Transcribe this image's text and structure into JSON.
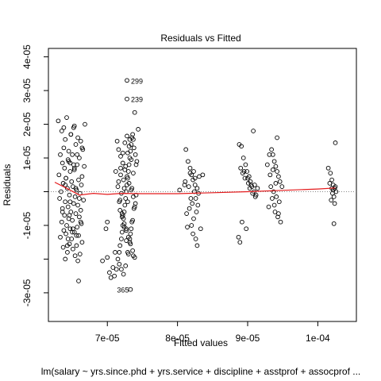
{
  "chart_data": {
    "type": "scatter",
    "title": "Residuals vs Fitted",
    "xlabel": "Fitted values",
    "ylabel": "Residuals",
    "subtitle": "lm(salary ~ yrs.since.phd + yrs.service + discipline + asstprof + assocprof ...",
    "xlim": [
      6.16e-05,
      0.0001055
    ],
    "ylim": [
      -3.85e-05,
      4.25e-05
    ],
    "x_ticks": [
      {
        "value": 7e-05,
        "label": "7e-05"
      },
      {
        "value": 8e-05,
        "label": "8e-05"
      },
      {
        "value": 9e-05,
        "label": "9e-05"
      },
      {
        "value": 0.0001,
        "label": "1e-04"
      }
    ],
    "y_ticks": [
      {
        "value": -3e-05,
        "label": "-3e-05"
      },
      {
        "value": -2e-05,
        "label": ""
      },
      {
        "value": -1e-05,
        "label": "-1e-05"
      },
      {
        "value": 0.0,
        "label": ""
      },
      {
        "value": 1e-05,
        "label": "1e-05"
      },
      {
        "value": 2e-05,
        "label": "2e-05"
      },
      {
        "value": 3e-05,
        "label": "3e-05"
      },
      {
        "value": 4e-05,
        "label": "4e-05"
      }
    ],
    "grid": false,
    "reference_line": {
      "y": 0,
      "style": "dotted",
      "color": "#888888"
    },
    "smooth_color": "#e41a1c",
    "point_color": "#000000",
    "smooth": {
      "x": [
        6.25e-05,
        6.42e-05,
        6.6e-05,
        6.8e-05,
        7e-05,
        7.2e-05,
        7.5e-05,
        8e-05,
        8.5e-05,
        9e-05,
        9.5e-05,
        0.0001,
        0.0001025
      ],
      "y": [
        2.8e-06,
        1e-06,
        -1e-06,
        -5e-07,
        -8e-07,
        -5e-07,
        -6e-07,
        -6e-07,
        -3e-07,
        0.0,
        4e-07,
        8e-07,
        1.1e-06
      ]
    },
    "annotations": [
      {
        "label": "299",
        "x": 7.28e-05,
        "y": 3.3e-05
      },
      {
        "label": "239",
        "x": 7.28e-05,
        "y": 2.75e-05
      },
      {
        "label": "365",
        "x": 7.33e-05,
        "y": -2.9e-05
      }
    ],
    "series": [
      {
        "x": [
          6.3e-05,
          6.42e-05,
          6.52e-05,
          6.68e-05,
          6.35e-05,
          6.48e-05,
          6.58e-05,
          6.4e-05,
          6.62e-05,
          6.55e-05,
          6.38e-05,
          6.65e-05,
          6.45e-05,
          6.33e-05,
          6.5e-05,
          6.6e-05,
          6.44e-05,
          6.36e-05,
          6.57e-05,
          6.67e-05,
          6.39e-05,
          6.53e-05,
          6.47e-05,
          6.31e-05,
          6.64e-05,
          6.41e-05,
          6.59e-05,
          6.49e-05,
          6.37e-05,
          6.63e-05,
          6.51e-05,
          6.43e-05,
          6.56e-05,
          6.34e-05,
          6.61e-05,
          6.46e-05,
          6.54e-05,
          6.32e-05,
          6.66e-05,
          6.4e-05,
          6.52e-05,
          6.58e-05,
          6.44e-05,
          6.36e-05,
          6.62e-05,
          6.48e-05,
          6.55e-05,
          6.39e-05,
          6.6e-05,
          6.45e-05,
          6.5e-05,
          6.35e-05,
          6.63e-05,
          6.42e-05,
          6.57e-05,
          6.47e-05,
          6.38e-05,
          6.53e-05,
          6.41e-05,
          6.59e-05,
          6.33e-05,
          6.49e-05,
          6.64e-05,
          6.46e-05,
          6.56e-05,
          6.37e-05,
          6.51e-05,
          6.43e-05,
          6.61e-05,
          6.54e-05,
          6.4e-05,
          6.58e-05,
          6.44e-05,
          6.5e-05,
          6.62e-05,
          6.36e-05,
          6.47e-05,
          6.55e-05,
          6.41e-05,
          6.52e-05,
          6.64e-05,
          6.48e-05,
          6.38e-05,
          6.57e-05,
          6.45e-05,
          6.53e-05,
          6.4e-05,
          6.6e-05,
          6.46e-05,
          6.51e-05,
          6.43e-05,
          6.56e-05,
          6.59e-05,
          6.47e-05,
          6.53e-05
        ],
        "y": [
          2.1e-05,
          2.2e-05,
          1.9e-05,
          2e-05,
          1.8e-05,
          1.7e-05,
          1.6e-05,
          1.55e-05,
          1.5e-05,
          1.4e-05,
          1.3e-05,
          1.25e-05,
          1.2e-05,
          1.1e-05,
          1.1e-05,
          1e-05,
          9.5e-06,
          8.5e-06,
          8e-06,
          7.5e-06,
          7e-06,
          6.5e-06,
          6e-06,
          5e-06,
          4.5e-06,
          4e-06,
          3.5e-06,
          3e-06,
          2.5e-06,
          2e-06,
          1.5e-06,
          1e-06,
          5e-07,
          0.0,
          -5e-07,
          -1e-06,
          -1.5e-06,
          -2e-06,
          -2.5e-06,
          -3e-06,
          -3.5e-06,
          -4e-06,
          -4.5e-06,
          -5e-06,
          -5.5e-06,
          -6e-06,
          -6.5e-06,
          -7e-06,
          -7.5e-06,
          -8e-06,
          -8.5e-06,
          -9e-06,
          -9.5e-06,
          -1e-05,
          -1.05e-05,
          -1.1e-05,
          -1.15e-05,
          -1.2e-05,
          -1.25e-05,
          -1.3e-05,
          -1.35e-05,
          -1.4e-05,
          -1.5e-05,
          -1.55e-05,
          -1.6e-05,
          -1.65e-05,
          -1.7e-05,
          -1.8e-05,
          -1.85e-05,
          -1.9e-05,
          -2e-05,
          -2.05e-05,
          -1.4e-05,
          -1.2e-05,
          -9e-06,
          -6e-06,
          -3e-06,
          1e-06,
          4e-06,
          8e-06,
          1.3e-05,
          1.7e-05,
          1.9e-05,
          1.1e-05,
          9e-06,
          7e-06,
          2e-06,
          -2e-06,
          -7e-06,
          -1.1e-05,
          -1.6e-05,
          -1.3e-05,
          -2.65e-05,
          8.5e-06,
          1.95e-05
        ]
      },
      {
        "x": [
          6.93e-05,
          7e-05,
          7.03e-05,
          7.1e-05,
          7.13e-05,
          7.15e-05,
          7.17e-05,
          7.18e-05,
          7.2e-05,
          7.21e-05,
          7.22e-05,
          7.23e-05,
          7.24e-05,
          7.25e-05,
          7.26e-05,
          7.27e-05,
          7.28e-05,
          7.29e-05,
          7.3e-05,
          7.31e-05,
          7.32e-05,
          7.33e-05,
          7.34e-05,
          7.35e-05,
          7.36e-05,
          7.37e-05,
          7.38e-05,
          7.4e-05,
          7.42e-05,
          7.44e-05,
          7.14e-05,
          7.16e-05,
          7.19e-05,
          7.22e-05,
          7.25e-05,
          7.28e-05,
          7.31e-05,
          7.34e-05,
          7.37e-05,
          7.4e-05,
          7.18e-05,
          7.21e-05,
          7.24e-05,
          7.27e-05,
          7.3e-05,
          7.33e-05,
          7.36e-05,
          7.39e-05,
          7.17e-05,
          7.2e-05,
          7.23e-05,
          7.26e-05,
          7.29e-05,
          7.32e-05,
          7.35e-05,
          7.38e-05,
          7.41e-05,
          7.16e-05,
          7.19e-05,
          7.22e-05,
          7.25e-05,
          7.28e-05,
          7.31e-05,
          7.34e-05,
          7.37e-05,
          7.15e-05,
          7.18e-05,
          7.21e-05,
          7.24e-05,
          7.27e-05,
          7.3e-05,
          7.33e-05,
          7.36e-05,
          7.39e-05,
          7.2e-05,
          7.23e-05,
          7.26e-05,
          7.29e-05,
          7.32e-05,
          7.35e-05,
          7.17e-05,
          7.22e-05,
          7.27e-05,
          7.32e-05,
          7.37e-05,
          7.19e-05,
          7.24e-05,
          7.29e-05,
          7.34e-05,
          7.39e-05,
          7.05e-05,
          7.08e-05,
          7.11e-05,
          7e-05,
          6.98e-05,
          7.12e-05,
          7.41e-05,
          7.28e-05,
          7.28e-05,
          7.33e-05
        ],
        "y": [
          -2.05e-05,
          -1.95e-05,
          -2.4e-05,
          -2.5e-05,
          -2.3e-05,
          -2e-05,
          -1.8e-05,
          -1.6e-05,
          -1.4e-05,
          -1.2e-05,
          -1e-05,
          -8e-06,
          -6e-06,
          -4e-06,
          -2e-06,
          0.0,
          2e-06,
          4e-06,
          6e-06,
          8e-06,
          1e-05,
          1.2e-05,
          1.4e-05,
          1.6e-05,
          1.7e-05,
          1.55e-05,
          1.3e-05,
          1.1e-05,
          9e-06,
          1.85e-05,
          1.5e-05,
          1.25e-05,
          1.05e-05,
          8.5e-06,
          6.5e-06,
          4.5e-06,
          2.5e-06,
          5e-07,
          -1.5e-06,
          -3.5e-06,
          -5.5e-06,
          -7.5e-06,
          -9.5e-06,
          -1.15e-05,
          -1.35e-05,
          -1.55e-05,
          -1.75e-05,
          -1.95e-05,
          -2.15e-05,
          -2.3e-05,
          -2.45e-05,
          -2.2e-05,
          -1.8e-05,
          -1.4e-05,
          -9e-06,
          -5e-06,
          -1e-06,
          3e-06,
          7e-06,
          1.15e-05,
          1.45e-05,
          1.65e-05,
          1.35e-05,
          9.5e-06,
          5.5e-06,
          1.5e-06,
          -2.5e-06,
          -6.5e-06,
          -1.05e-05,
          -1.45e-05,
          -1.85e-05,
          -1.25e-05,
          -8.5e-06,
          -4.5e-06,
          -5e-07,
          3.5e-06,
          7.5e-06,
          1.15e-05,
          1.55e-05,
          1e-06,
          -3e-06,
          -7e-06,
          -1.1e-05,
          -1.5e-05,
          -1.9e-05,
          5e-06,
          1e-06,
          -3e-06,
          -1.1e-05,
          2.35e-05,
          -2.55e-05,
          -2.25e-05,
          -1.8e-05,
          -9e-06,
          -1.1e-05,
          6e-06,
          8e-06,
          3.3e-05,
          2.75e-05,
          -2.9e-05
        ]
      },
      {
        "x": [
          8.12e-05,
          8.15e-05,
          8.18e-05,
          8.2e-05,
          8.22e-05,
          8.25e-05,
          8.28e-05,
          8.3e-05,
          8.26e-05,
          8.21e-05,
          8.17e-05,
          8.13e-05,
          8.23e-05,
          8.27e-05,
          8.29e-05,
          8.19e-05,
          8.24e-05,
          8.16e-05,
          8.11e-05,
          8.31e-05,
          8.14e-05,
          8.22e-05,
          8.26e-05,
          8.28e-05,
          8.2e-05,
          8.25e-05,
          8.18e-05,
          8.23e-05,
          8.1e-05,
          8.33e-05,
          8.36e-05,
          8.03e-05
        ],
        "y": [
          1.25e-05,
          9e-06,
          7e-06,
          5e-06,
          3.5e-06,
          2e-06,
          1e-06,
          -5e-07,
          -2e-06,
          -3.5e-06,
          -5e-06,
          -6.5e-06,
          -8e-06,
          -6e-06,
          -4e-06,
          -2e-06,
          0.0,
          1.5e-06,
          3e-06,
          4.5e-06,
          -1.05e-05,
          -1.25e-05,
          -1.4e-05,
          -1.6e-05,
          -1e-05,
          4e-06,
          5.5e-06,
          6e-06,
          2e-06,
          -1.1e-05,
          5e-06,
          5e-07
        ]
      },
      {
        "x": [
          8.88e-05,
          8.91e-05,
          8.94e-05,
          8.97e-05,
          8.99e-05,
          9.02e-05,
          9.04e-05,
          9.06e-05,
          9.09e-05,
          9.11e-05,
          9.14e-05,
          8.9e-05,
          8.93e-05,
          8.96e-05,
          9.01e-05,
          9.03e-05,
          9.07e-05,
          9.1e-05,
          8.95e-05,
          9e-05,
          9.05e-05,
          9.08e-05,
          8.92e-05,
          8.98e-05,
          8.87e-05,
          9.12e-05,
          8.89e-05
        ],
        "y": [
          1.4e-05,
          1.35e-05,
          1e-05,
          8e-06,
          6e-06,
          4.5e-06,
          3e-06,
          1.5e-06,
          0.0,
          -1.5e-06,
          1e-06,
          7e-06,
          5.5e-06,
          4e-06,
          2.5e-06,
          1e-06,
          -5e-07,
          2e-06,
          6e-06,
          4e-06,
          2e-06,
          1.8e-05,
          -9e-06,
          -1.1e-05,
          -1.35e-05,
          -1e-06,
          -1.5e-05
        ]
      },
      {
        "x": [
          9.28e-05,
          9.31e-05,
          9.34e-05,
          9.36e-05,
          9.38e-05,
          9.4e-05,
          9.42e-05,
          9.44e-05,
          9.46e-05,
          9.33e-05,
          9.37e-05,
          9.41e-05,
          9.45e-05,
          9.3e-05,
          9.39e-05,
          9.43e-05,
          9.35e-05,
          9.47e-05,
          9.32e-05,
          9.38e-05,
          9.42e-05,
          9.36e-05,
          9.4e-05,
          9.44e-05,
          9.49e-05
        ],
        "y": [
          8e-06,
          1.1e-05,
          1.25e-05,
          1.1e-05,
          9e-06,
          7.5e-06,
          6e-06,
          4.5e-06,
          3e-06,
          1.5e-06,
          0.0,
          -1.5e-06,
          -3e-06,
          -4.5e-06,
          -6e-06,
          -7.5e-06,
          -2e-06,
          -9e-06,
          5e-06,
          -4e-06,
          1.6e-05,
          6.5e-06,
          2.5e-06,
          -6.5e-06,
          1.5e-06
        ]
      },
      {
        "x": [
          0.0001015,
          0.0001018,
          0.000102,
          0.0001022,
          0.0001024,
          0.0001026,
          0.0001021,
          0.0001023,
          0.0001019,
          0.0001025,
          0.0001017,
          0.0001022,
          0.0001024,
          0.000102,
          0.0001025,
          0.0001023
        ],
        "y": [
          7e-06,
          5.5e-06,
          3.5e-06,
          2e-06,
          1e-06,
          0.0,
          -5e-07,
          -1.5e-06,
          -2.5e-06,
          1.5e-06,
          2.5e-06,
          5e-07,
          -3.5e-06,
          1e-06,
          1.45e-05,
          -9.5e-06
        ]
      }
    ]
  }
}
